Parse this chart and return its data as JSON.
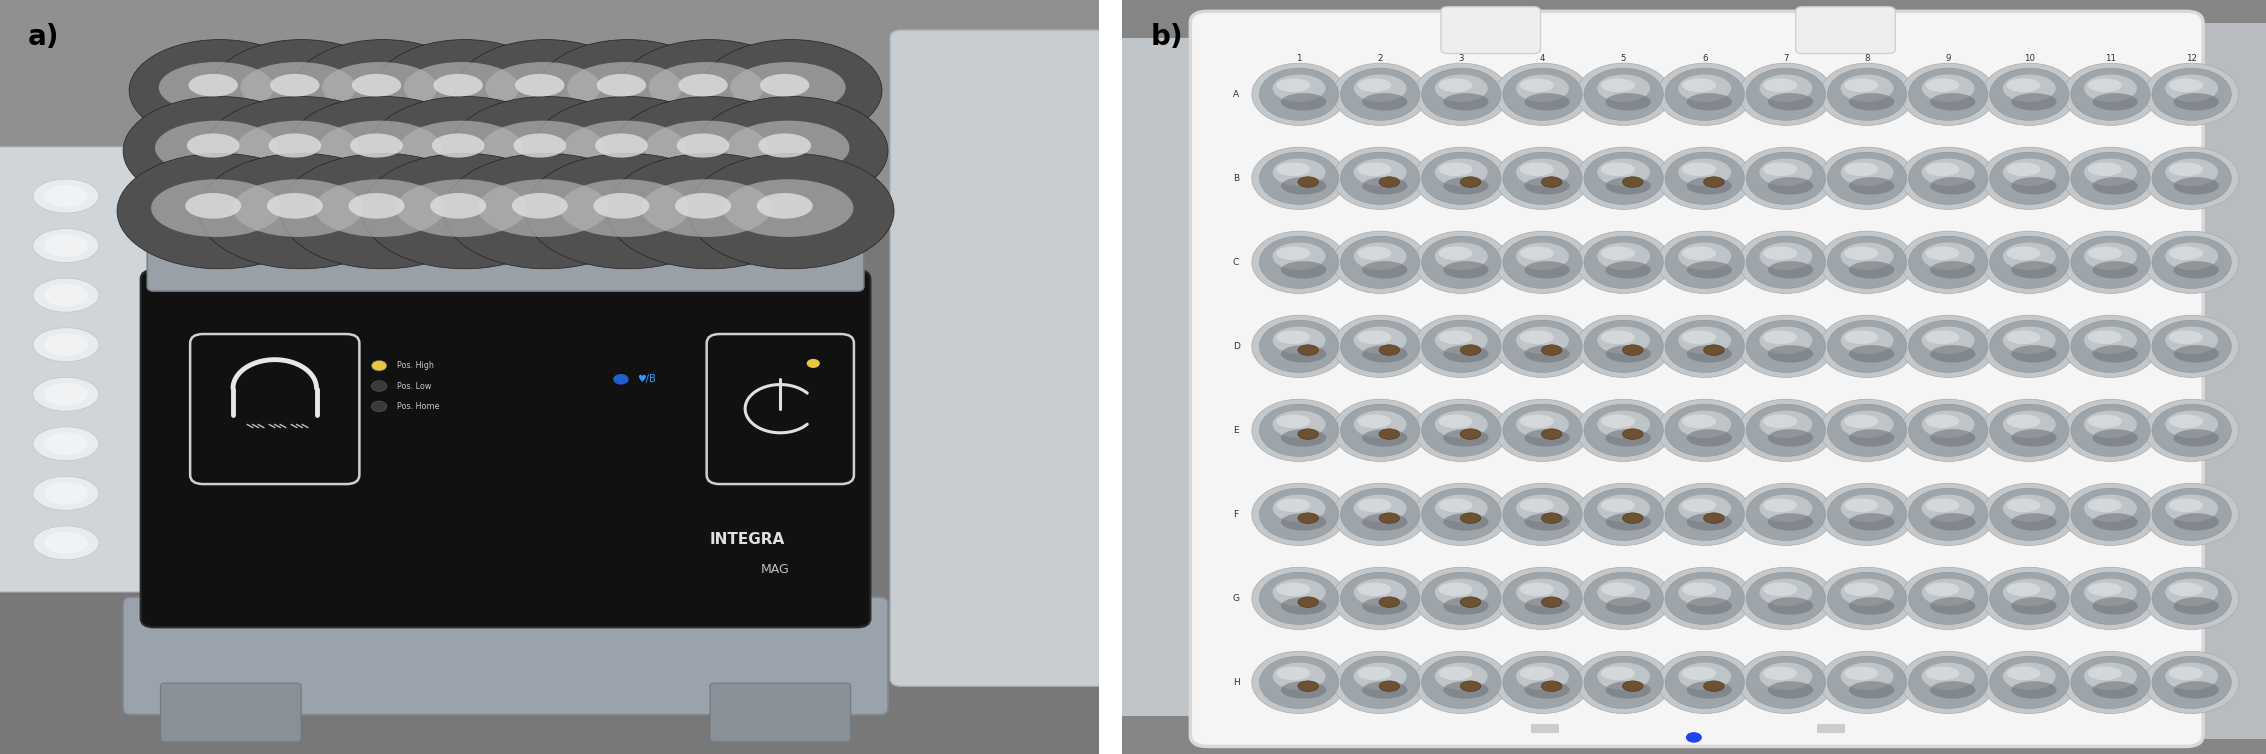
{
  "figure_width": 22.66,
  "figure_height": 7.54,
  "dpi": 100,
  "background_color": "#ffffff",
  "label_a": "a)",
  "label_b": "b)",
  "label_fontsize": 20,
  "label_fontweight": "bold",
  "label_color": "#000000",
  "panel_a_bg": "#808080",
  "panel_b_bg": "#999999",
  "device_body_color": "#111111",
  "magnet_post_dark": "#1a1a1a",
  "magnet_tip_color": "#909090",
  "magnet_tip_highlight": "#cccccc",
  "integra_text_color": "#e0e0e0",
  "mag_text_color": "#c0c0c0",
  "pos_high_led": "#e8c840",
  "usb_color": "#4488ff",
  "bluetooth_color": "#4499ff",
  "power_led": "#e8c840",
  "plate_white": "#f2f2f2",
  "plate_edge": "#e0e0e0",
  "well_rim_color": "#c8c8c8",
  "well_bg_color": "#b0b5b8",
  "well_inner_color": "#9aa0a5",
  "well_highlight": "#dde0e2",
  "well_dark_bottom": "#6a7075",
  "bead_color": "#6b4c2a",
  "bead_edge": "#4a2c0a",
  "row_labels": [
    "A",
    "B",
    "C",
    "D",
    "E",
    "F",
    "G",
    "H"
  ],
  "col_labels": [
    "1",
    "2",
    "3",
    "4",
    "5",
    "6",
    "7",
    "8",
    "9",
    "10",
    "11",
    "12"
  ],
  "silver_rail": "#9aa0a8",
  "silver_rail_edge": "#7a8088",
  "platform_color": "#9aa2ab",
  "left_tray_color": "#d8dce0",
  "right_arm_color": "#d0d5da"
}
